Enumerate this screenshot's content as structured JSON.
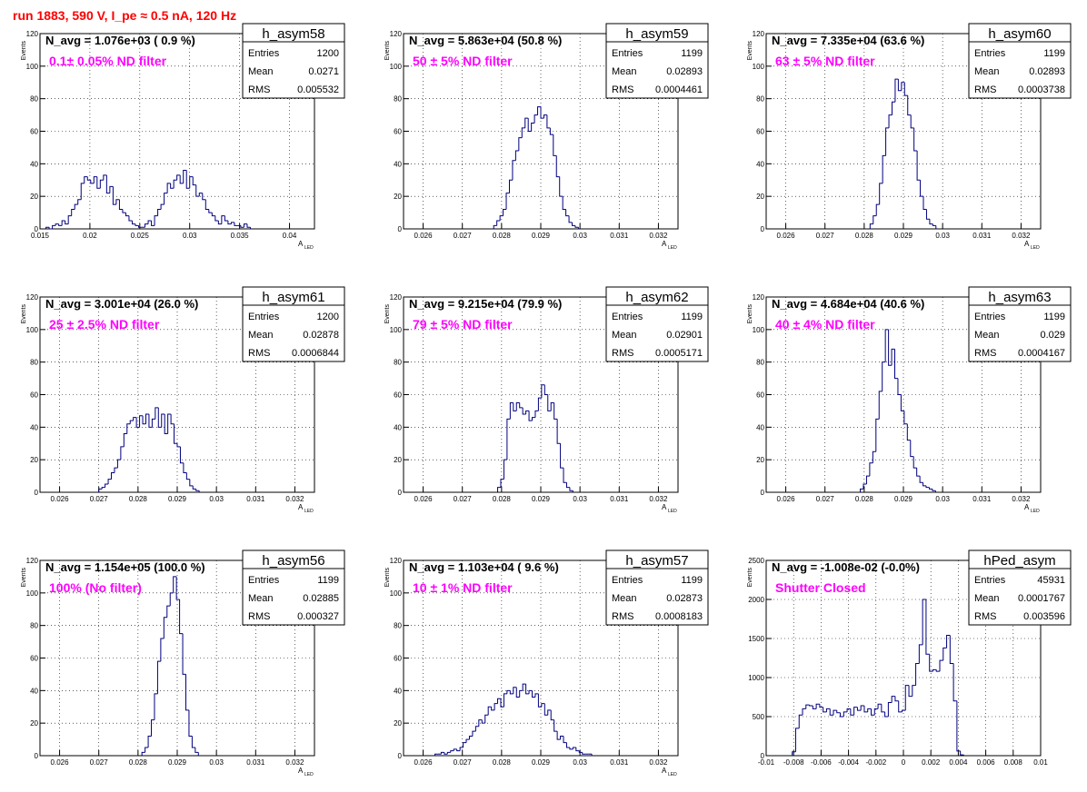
{
  "page_title": "run 1883,   590 V, I_pe ≈ 0.5 nA, 120 Hz",
  "colors": {
    "hist": "#00007f",
    "annotation": "#ff00ff",
    "title": "#ff0000",
    "grid": "#000000"
  },
  "chart_data": [
    {
      "type": "histogram",
      "name": "h_asym58",
      "annotation": "N_avg = 1.076e+03 ( 0.9 %)",
      "filter": "0.1± 0.05% ND filter",
      "stats": {
        "entries": "1200",
        "mean": "0.0271",
        "rms": "0.005532"
      },
      "xlabel": "A",
      "xlabel_sub": "LED",
      "ylabel": "Events",
      "xlim": [
        0.015,
        0.0425
      ],
      "ylim": [
        0,
        120
      ],
      "xticks": [
        0.015,
        0.02,
        0.025,
        0.03,
        0.035,
        0.04
      ],
      "xtick_labels": [
        "0.015",
        "0.02",
        "0.025",
        "0.03",
        "0.035",
        "0.04"
      ],
      "yticks": [
        0,
        20,
        40,
        60,
        80,
        100,
        120
      ],
      "ytick_labels": [
        "0",
        "20",
        "40",
        "60",
        "80",
        "100",
        "120"
      ],
      "bins": {
        "x0": 0.0156,
        "width": 0.00032,
        "counts": [
          1,
          0,
          2,
          3,
          2,
          5,
          3,
          8,
          12,
          15,
          18,
          28,
          32,
          30,
          28,
          32,
          25,
          30,
          33,
          22,
          26,
          15,
          18,
          12,
          10,
          8,
          5,
          3,
          2,
          1,
          1,
          3,
          5,
          2,
          8,
          12,
          15,
          22,
          28,
          25,
          30,
          33,
          28,
          36,
          25,
          32,
          27,
          20,
          22,
          18,
          12,
          10,
          8,
          5,
          3,
          8,
          5,
          3,
          4,
          2,
          2,
          1,
          3,
          1
        ]
      }
    },
    {
      "type": "histogram",
      "name": "h_asym59",
      "annotation": "N_avg = 5.863e+04 (50.8 %)",
      "filter": "50 ± 5% ND filter",
      "stats": {
        "entries": "1199",
        "mean": "0.02893",
        "rms": "0.0004461"
      },
      "xlabel": "A",
      "xlabel_sub": "LED",
      "ylabel": "Events",
      "xlim": [
        0.0255,
        0.0325
      ],
      "ylim": [
        0,
        120
      ],
      "xticks": [
        0.026,
        0.027,
        0.028,
        0.029,
        0.03,
        0.031,
        0.032
      ],
      "xtick_labels": [
        "0.026",
        "0.027",
        "0.028",
        "0.029",
        "0.03",
        "0.031",
        "0.032"
      ],
      "yticks": [
        0,
        20,
        40,
        60,
        80,
        100,
        120
      ],
      "ytick_labels": [
        "0",
        "20",
        "40",
        "60",
        "80",
        "100",
        "120"
      ],
      "bins": {
        "x0": 0.0278,
        "width": 8e-05,
        "counts": [
          2,
          5,
          8,
          12,
          22,
          30,
          42,
          48,
          56,
          62,
          68,
          60,
          65,
          70,
          75,
          68,
          70,
          62,
          58,
          45,
          32,
          20,
          12,
          8,
          4,
          2,
          1
        ]
      }
    },
    {
      "type": "histogram",
      "name": "h_asym60",
      "annotation": "N_avg = 7.335e+04 (63.6 %)",
      "filter": "63 ± 5% ND filter",
      "stats": {
        "entries": "1199",
        "mean": "0.02893",
        "rms": "0.0003738"
      },
      "xlabel": "A",
      "xlabel_sub": "LED",
      "ylabel": "Events",
      "xlim": [
        0.0255,
        0.0325
      ],
      "ylim": [
        0,
        120
      ],
      "xticks": [
        0.026,
        0.027,
        0.028,
        0.029,
        0.03,
        0.031,
        0.032
      ],
      "xtick_labels": [
        "0.026",
        "0.027",
        "0.028",
        "0.029",
        "0.03",
        "0.031",
        "0.032"
      ],
      "yticks": [
        0,
        20,
        40,
        60,
        80,
        100,
        120
      ],
      "ytick_labels": [
        "0",
        "20",
        "40",
        "60",
        "80",
        "100",
        "120"
      ],
      "bins": {
        "x0": 0.02815,
        "width": 8e-05,
        "counts": [
          3,
          8,
          15,
          28,
          45,
          62,
          70,
          78,
          92,
          85,
          90,
          82,
          70,
          62,
          48,
          30,
          20,
          12,
          6,
          3,
          2
        ]
      }
    },
    {
      "type": "histogram",
      "name": "h_asym61",
      "annotation": "N_avg = 3.001e+04 (26.0 %)",
      "filter": "25 ± 2.5% ND filter",
      "stats": {
        "entries": "1200",
        "mean": "0.02878",
        "rms": "0.0006844"
      },
      "xlabel": "A",
      "xlabel_sub": "LED",
      "ylabel": "Events",
      "xlim": [
        0.0255,
        0.0325
      ],
      "ylim": [
        0,
        120
      ],
      "xticks": [
        0.026,
        0.027,
        0.028,
        0.029,
        0.03,
        0.031,
        0.032
      ],
      "xtick_labels": [
        "0.026",
        "0.027",
        "0.028",
        "0.029",
        "0.03",
        "0.031",
        "0.032"
      ],
      "yticks": [
        0,
        20,
        40,
        60,
        80,
        100,
        120
      ],
      "ytick_labels": [
        "0",
        "20",
        "40",
        "60",
        "80",
        "100",
        "120"
      ],
      "bins": {
        "x0": 0.027,
        "width": 8e-05,
        "counts": [
          2,
          3,
          5,
          8,
          12,
          15,
          20,
          28,
          36,
          42,
          44,
          46,
          40,
          47,
          42,
          48,
          40,
          45,
          52,
          40,
          48,
          36,
          48,
          42,
          30,
          28,
          18,
          12,
          8,
          4,
          2,
          1
        ]
      }
    },
    {
      "type": "histogram",
      "name": "h_asym62",
      "annotation": "N_avg = 9.215e+04 (79.9 %)",
      "filter": "79 ± 5% ND filter",
      "stats": {
        "entries": "1199",
        "mean": "0.02901",
        "rms": "0.0005171"
      },
      "xlabel": "A",
      "xlabel_sub": "LED",
      "ylabel": "Events",
      "xlim": [
        0.0255,
        0.0325
      ],
      "ylim": [
        0,
        120
      ],
      "xticks": [
        0.026,
        0.027,
        0.028,
        0.029,
        0.03,
        0.031,
        0.032
      ],
      "xtick_labels": [
        "0.026",
        "0.027",
        "0.028",
        "0.029",
        "0.03",
        "0.031",
        "0.032"
      ],
      "yticks": [
        0,
        20,
        40,
        60,
        80,
        100,
        120
      ],
      "ytick_labels": [
        "0",
        "20",
        "40",
        "60",
        "80",
        "100",
        "120"
      ],
      "bins": {
        "x0": 0.0279,
        "width": 8e-05,
        "counts": [
          3,
          8,
          20,
          45,
          55,
          50,
          55,
          52,
          48,
          50,
          44,
          46,
          50,
          58,
          66,
          60,
          50,
          55,
          45,
          30,
          15,
          6,
          3,
          1
        ]
      }
    },
    {
      "type": "histogram",
      "name": "h_asym63",
      "annotation": "N_avg = 4.684e+04 (40.6 %)",
      "filter": "40 ± 4% ND filter",
      "stats": {
        "entries": "1199",
        "mean": "0.029",
        "rms": "0.0004167"
      },
      "xlabel": "A",
      "xlabel_sub": "LED",
      "ylabel": "Events",
      "xlim": [
        0.0255,
        0.0325
      ],
      "ylim": [
        0,
        120
      ],
      "xticks": [
        0.026,
        0.027,
        0.028,
        0.029,
        0.03,
        0.031,
        0.032
      ],
      "xtick_labels": [
        "0.026",
        "0.027",
        "0.028",
        "0.029",
        "0.03",
        "0.031",
        "0.032"
      ],
      "yticks": [
        0,
        20,
        40,
        60,
        80,
        100,
        120
      ],
      "ytick_labels": [
        "0",
        "20",
        "40",
        "60",
        "80",
        "100",
        "120"
      ],
      "bins": {
        "x0": 0.0279,
        "width": 8e-05,
        "counts": [
          2,
          5,
          10,
          18,
          25,
          45,
          62,
          80,
          100,
          78,
          88,
          70,
          60,
          50,
          42,
          32,
          22,
          15,
          10,
          6,
          4,
          3,
          2,
          1
        ]
      }
    },
    {
      "type": "histogram",
      "name": "h_asym56",
      "annotation": "N_avg = 1.154e+05 (100.0 %)",
      "filter": "100% (No filter)",
      "stats": {
        "entries": "1199",
        "mean": "0.02885",
        "rms": "0.000327"
      },
      "xlabel": "A",
      "xlabel_sub": "LED",
      "ylabel": "Events",
      "xlim": [
        0.0255,
        0.0325
      ],
      "ylim": [
        0,
        120
      ],
      "xticks": [
        0.026,
        0.027,
        0.028,
        0.029,
        0.03,
        0.031,
        0.032
      ],
      "xtick_labels": [
        "0.026",
        "0.027",
        "0.028",
        "0.029",
        "0.03",
        "0.031",
        "0.032"
      ],
      "yticks": [
        0,
        20,
        40,
        60,
        80,
        100,
        120
      ],
      "ytick_labels": [
        "0",
        "20",
        "40",
        "60",
        "80",
        "100",
        "120"
      ],
      "bins": {
        "x0": 0.0281,
        "width": 8e-05,
        "counts": [
          2,
          5,
          12,
          22,
          38,
          58,
          72,
          85,
          92,
          100,
          110,
          96,
          75,
          50,
          28,
          12,
          5,
          2
        ]
      }
    },
    {
      "type": "histogram",
      "name": "h_asym57",
      "annotation": "N_avg = 1.103e+04 ( 9.6 %)",
      "filter": "10 ± 1% ND filter",
      "stats": {
        "entries": "1199",
        "mean": "0.02873",
        "rms": "0.0008183"
      },
      "xlabel": "A",
      "xlabel_sub": "LED",
      "ylabel": "Events",
      "xlim": [
        0.0255,
        0.0325
      ],
      "ylim": [
        0,
        120
      ],
      "xticks": [
        0.026,
        0.027,
        0.028,
        0.029,
        0.03,
        0.031,
        0.032
      ],
      "xtick_labels": [
        "0.026",
        "0.027",
        "0.028",
        "0.029",
        "0.03",
        "0.031",
        "0.032"
      ],
      "yticks": [
        0,
        20,
        40,
        60,
        80,
        100,
        120
      ],
      "ytick_labels": [
        "0",
        "20",
        "40",
        "60",
        "80",
        "100",
        "120"
      ],
      "bins": {
        "x0": 0.0263,
        "width": 8e-05,
        "counts": [
          1,
          1,
          2,
          1,
          2,
          3,
          4,
          3,
          5,
          8,
          10,
          12,
          15,
          18,
          22,
          20,
          25,
          30,
          28,
          32,
          35,
          30,
          38,
          40,
          38,
          42,
          36,
          40,
          44,
          38,
          40,
          36,
          38,
          30,
          32,
          25,
          28,
          22,
          15,
          10,
          12,
          8,
          5,
          4,
          5,
          3,
          2,
          1,
          1,
          1
        ]
      }
    },
    {
      "type": "histogram",
      "name": "hPed_asym",
      "annotation": "N_avg = -1.008e-02 (-0.0%)",
      "filter": "Shutter Closed",
      "stats": {
        "entries": "45931",
        "mean": "0.0001767",
        "rms": "0.003596"
      },
      "xlabel": "",
      "xlabel_sub": "",
      "ylabel": "Events",
      "xlim": [
        -0.01,
        0.01
      ],
      "ylim": [
        0,
        2500
      ],
      "xticks": [
        -0.01,
        -0.008,
        -0.006,
        -0.004,
        -0.002,
        0,
        0.002,
        0.004,
        0.006,
        0.008,
        0.01
      ],
      "xtick_labels": [
        "-0.01",
        "-0.008",
        "-0.006",
        "-0.004",
        "-0.002",
        "0",
        "0.002",
        "0.004",
        "0.006",
        "0.008",
        "0.01"
      ],
      "yticks": [
        0,
        500,
        1000,
        1500,
        2000,
        2500
      ],
      "ytick_labels": [
        "0",
        "500",
        "1000",
        "1500",
        "2000",
        "2500"
      ],
      "bins": {
        "x0": -0.0081,
        "width": 0.00025,
        "counts": [
          50,
          350,
          520,
          600,
          650,
          640,
          600,
          660,
          620,
          560,
          600,
          520,
          580,
          550,
          500,
          560,
          600,
          520,
          620,
          580,
          640,
          560,
          600,
          520,
          600,
          660,
          560,
          500,
          680,
          760,
          700,
          560,
          580,
          900,
          760,
          900,
          1180,
          1420,
          2000,
          1300,
          1080,
          1100,
          1080,
          1220,
          1380,
          1540,
          1180,
          700,
          60,
          10
        ]
      }
    }
  ]
}
